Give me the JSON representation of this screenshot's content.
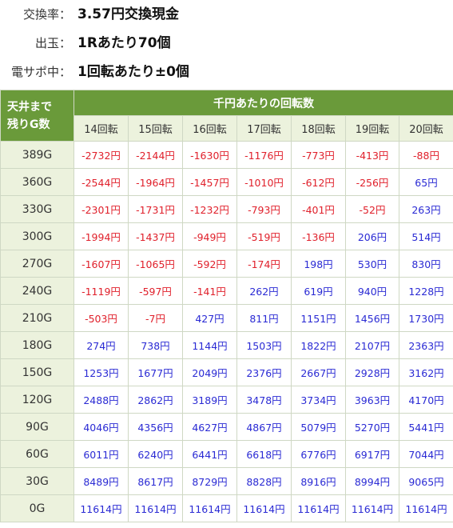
{
  "info": [
    {
      "label": "交換率：",
      "value": "3.57円交換現金"
    },
    {
      "label": "出玉：",
      "value": "1Rあたり70個"
    },
    {
      "label": "電サポ中：",
      "value": "1回転あたり±0個"
    }
  ],
  "table": {
    "corner": [
      "天井まで",
      "残りG数"
    ],
    "group_header": "千円あたりの回転数",
    "columns": [
      "14回転",
      "15回転",
      "16回転",
      "17回転",
      "18回転",
      "19回転",
      "20回転"
    ],
    "colors": {
      "negative": "#e0202b",
      "positive": "#2a2ad4",
      "header": "#6a9a3a",
      "subheader": "#ecf2dd"
    },
    "rows": [
      {
        "label": "389G",
        "cells": [
          "-2732円",
          "-2144円",
          "-1630円",
          "-1176円",
          "-773円",
          "-413円",
          "-88円"
        ]
      },
      {
        "label": "360G",
        "cells": [
          "-2544円",
          "-1964円",
          "-1457円",
          "-1010円",
          "-612円",
          "-256円",
          "65円"
        ]
      },
      {
        "label": "330G",
        "cells": [
          "-2301円",
          "-1731円",
          "-1232円",
          "-793円",
          "-401円",
          "-52円",
          "263円"
        ]
      },
      {
        "label": "300G",
        "cells": [
          "-1994円",
          "-1437円",
          "-949円",
          "-519円",
          "-136円",
          "206円",
          "514円"
        ]
      },
      {
        "label": "270G",
        "cells": [
          "-1607円",
          "-1065円",
          "-592円",
          "-174円",
          "198円",
          "530円",
          "830円"
        ]
      },
      {
        "label": "240G",
        "cells": [
          "-1119円",
          "-597円",
          "-141円",
          "262円",
          "619円",
          "940円",
          "1228円"
        ]
      },
      {
        "label": "210G",
        "cells": [
          "-503円",
          "-7円",
          "427円",
          "811円",
          "1151円",
          "1456円",
          "1730円"
        ]
      },
      {
        "label": "180G",
        "cells": [
          "274円",
          "738円",
          "1144円",
          "1503円",
          "1822円",
          "2107円",
          "2363円"
        ]
      },
      {
        "label": "150G",
        "cells": [
          "1253円",
          "1677円",
          "2049円",
          "2376円",
          "2667円",
          "2928円",
          "3162円"
        ]
      },
      {
        "label": "120G",
        "cells": [
          "2488円",
          "2862円",
          "3189円",
          "3478円",
          "3734円",
          "3963円",
          "4170円"
        ]
      },
      {
        "label": "90G",
        "cells": [
          "4046円",
          "4356円",
          "4627円",
          "4867円",
          "5079円",
          "5270円",
          "5441円"
        ]
      },
      {
        "label": "60G",
        "cells": [
          "6011円",
          "6240円",
          "6441円",
          "6618円",
          "6776円",
          "6917円",
          "7044円"
        ]
      },
      {
        "label": "30G",
        "cells": [
          "8489円",
          "8617円",
          "8729円",
          "8828円",
          "8916円",
          "8994円",
          "9065円"
        ]
      },
      {
        "label": "0G",
        "cells": [
          "11614円",
          "11614円",
          "11614円",
          "11614円",
          "11614円",
          "11614円",
          "11614円"
        ]
      }
    ]
  }
}
